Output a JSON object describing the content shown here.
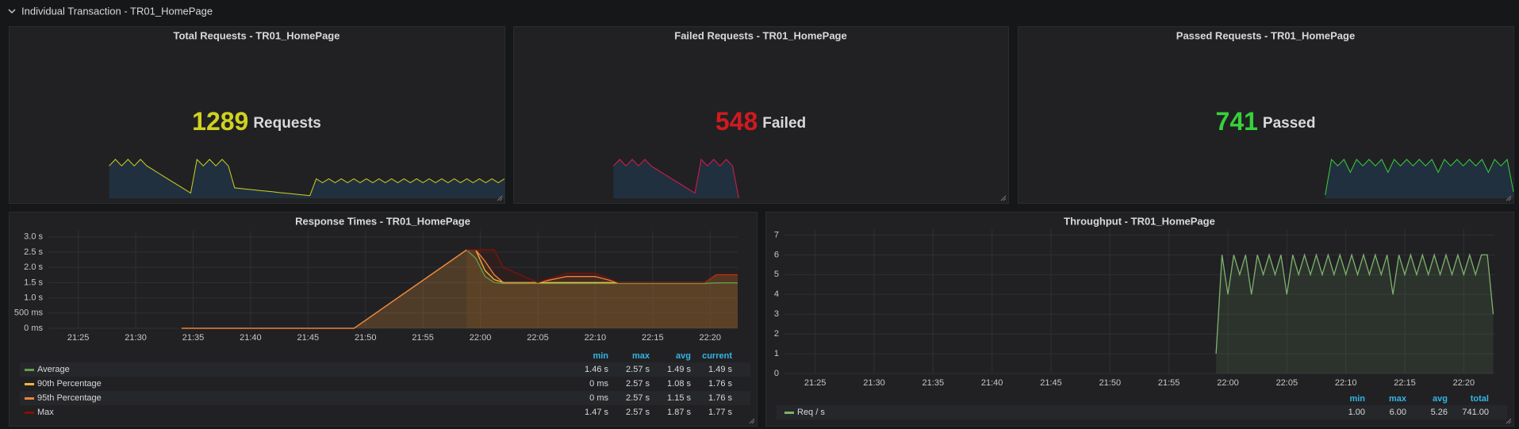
{
  "row_title": "Individual Transaction - TR01_HomePage",
  "chart_data": [
    {
      "type": "stat",
      "title": "Total Requests - TR01_HomePage",
      "value": 1289,
      "unit": "Requests",
      "color": "#d0d21f",
      "sparkline": {
        "color": "#d0d21f",
        "fill_color": "#1f76bd",
        "values": [
          null,
          null,
          null,
          null,
          null,
          null,
          null,
          null,
          null,
          null,
          null,
          null,
          null,
          null,
          null,
          null,
          5,
          6,
          5,
          6,
          5,
          6,
          5,
          4.4,
          3.8,
          3.2,
          2.6,
          2,
          1.4,
          0.8,
          6,
          5,
          6,
          5,
          6,
          5,
          1.6,
          1.5,
          1.4,
          1.3,
          1.2,
          1.1,
          1.0,
          0.9,
          0.8,
          0.7,
          0.6,
          0.5,
          0.4,
          3,
          2.4,
          3,
          2.4,
          3,
          2.4,
          3,
          2.4,
          3,
          2.4,
          3,
          2.4,
          3,
          2.4,
          3,
          2.4,
          3,
          2.4,
          3,
          2.4,
          3,
          2.4,
          3,
          2.4,
          3,
          2.4,
          3,
          2.4,
          3,
          2.4,
          3
        ]
      }
    },
    {
      "type": "stat",
      "title": "Failed Requests - TR01_HomePage",
      "value": 548,
      "unit": "Failed",
      "color": "#d11a1e",
      "sparkline": {
        "color": "#e0194a",
        "fill_color": "#1f76bd",
        "values": [
          null,
          null,
          null,
          null,
          null,
          null,
          null,
          null,
          null,
          null,
          null,
          null,
          null,
          null,
          null,
          null,
          5,
          6,
          5,
          6,
          5,
          6,
          5,
          4.4,
          3.8,
          3.2,
          2.6,
          2,
          1.4,
          0.8,
          6,
          5,
          6,
          5,
          6,
          5,
          0,
          null,
          null,
          null,
          null,
          null,
          null,
          null,
          null,
          null,
          null,
          null,
          null,
          null,
          null,
          null,
          null,
          null,
          null,
          null,
          null,
          null,
          null,
          null,
          null,
          null,
          null,
          null,
          null,
          null,
          null,
          null,
          null,
          null,
          null,
          null,
          null,
          null,
          null,
          null,
          null,
          null,
          null,
          null
        ]
      }
    },
    {
      "type": "stat",
      "title": "Passed Requests - TR01_HomePage",
      "value": 741,
      "unit": "Passed",
      "color": "#37d13a",
      "sparkline": {
        "color": "#3ad13a",
        "fill_color": "#1f76bd",
        "values": [
          null,
          null,
          null,
          null,
          null,
          null,
          null,
          null,
          null,
          null,
          null,
          null,
          null,
          null,
          null,
          null,
          null,
          null,
          null,
          null,
          null,
          null,
          null,
          null,
          null,
          null,
          null,
          null,
          null,
          null,
          null,
          null,
          null,
          null,
          null,
          null,
          null,
          null,
          null,
          null,
          null,
          null,
          null,
          null,
          null,
          null,
          null,
          null,
          null,
          0.5,
          6,
          5,
          6,
          4,
          6,
          5,
          6,
          5,
          6,
          4,
          6,
          5,
          6,
          5,
          6,
          5,
          6,
          4,
          6,
          5,
          6,
          5,
          6,
          5,
          6,
          4,
          6,
          5,
          6,
          1
        ]
      }
    },
    {
      "type": "line",
      "title": "Response Times - TR01_HomePage",
      "x": [
        1294,
        1309,
        1318.8,
        1319.6,
        1320.4,
        1321.2,
        1322,
        1325,
        1327.5,
        1328,
        1330,
        1332,
        1335,
        1338,
        1339.5,
        1340.5,
        1342.4
      ],
      "xlim": [
        1282.4,
        1342.4
      ],
      "xticks": [
        {
          "value": 1285,
          "label": "21:25"
        },
        {
          "value": 1290,
          "label": "21:30"
        },
        {
          "value": 1295,
          "label": "21:35"
        },
        {
          "value": 1300,
          "label": "21:40"
        },
        {
          "value": 1305,
          "label": "21:45"
        },
        {
          "value": 1310,
          "label": "21:50"
        },
        {
          "value": 1315,
          "label": "21:55"
        },
        {
          "value": 1320,
          "label": "22:00"
        },
        {
          "value": 1325,
          "label": "22:05"
        },
        {
          "value": 1330,
          "label": "22:10"
        },
        {
          "value": 1335,
          "label": "22:15"
        },
        {
          "value": 1340,
          "label": "22:20"
        }
      ],
      "ylim": [
        0,
        3.2
      ],
      "yticks": [
        {
          "value": 0,
          "label": "0 ms"
        },
        {
          "value": 0.5,
          "label": "500 ms"
        },
        {
          "value": 1,
          "label": "1.0 s"
        },
        {
          "value": 1.5,
          "label": "1.5 s"
        },
        {
          "value": 2,
          "label": "2.0 s"
        },
        {
          "value": 2.5,
          "label": "2.5 s"
        },
        {
          "value": 3,
          "label": "3.0 s"
        }
      ],
      "grid": true,
      "legend_columns": [
        "min",
        "max",
        "avg",
        "current"
      ],
      "series": [
        {
          "name": "Average",
          "color": "#629e51",
          "values": [
            null,
            null,
            2.57,
            2.3,
            1.7,
            1.5,
            1.47,
            1.47,
            1.47,
            1.47,
            1.47,
            1.47,
            1.47,
            1.47,
            1.47,
            1.49,
            1.49
          ],
          "legend_values": [
            "1.46 s",
            "2.57 s",
            "1.49 s",
            "1.49 s"
          ]
        },
        {
          "name": "90th Percentage",
          "color": "#eab839",
          "values": [
            0,
            0,
            2.57,
            2.57,
            1.9,
            1.6,
            1.5,
            1.5,
            1.5,
            1.5,
            1.5,
            1.5,
            1.5,
            1.5,
            1.5,
            1.76,
            1.76
          ],
          "legend_values": [
            "0 ms",
            "2.57 s",
            "1.08 s",
            "1.76 s"
          ]
        },
        {
          "name": "95th Percentage",
          "color": "#ef843c",
          "values": [
            0,
            0,
            2.57,
            2.57,
            2.2,
            1.76,
            1.5,
            1.5,
            1.7,
            1.7,
            1.7,
            1.5,
            1.5,
            1.5,
            1.5,
            1.76,
            1.76
          ],
          "legend_values": [
            "0 ms",
            "2.57 s",
            "1.15 s",
            "1.76 s"
          ]
        },
        {
          "name": "Max",
          "color": "#890f02",
          "values": [
            null,
            null,
            2.57,
            2.57,
            2.57,
            2.57,
            2.0,
            1.5,
            1.8,
            1.8,
            1.8,
            1.5,
            1.5,
            1.5,
            1.5,
            1.77,
            1.77
          ],
          "legend_values": [
            "1.47 s",
            "2.57 s",
            "1.87 s",
            "1.77 s"
          ]
        }
      ]
    },
    {
      "type": "line",
      "title": "Throughput - TR01_HomePage",
      "x": [
        1319,
        1319.5,
        1320,
        1320.5,
        1321,
        1321.5,
        1322,
        1322.5,
        1323,
        1323.5,
        1324,
        1324.5,
        1325,
        1325.5,
        1326,
        1326.5,
        1327,
        1327.5,
        1328,
        1328.5,
        1329,
        1329.5,
        1330,
        1330.5,
        1331,
        1331.5,
        1332,
        1332.5,
        1333,
        1333.5,
        1334,
        1334.5,
        1335,
        1335.5,
        1336,
        1336.5,
        1337,
        1337.5,
        1338,
        1338.5,
        1339,
        1339.5,
        1340,
        1340.5,
        1341,
        1341.5,
        1342,
        1342.5
      ],
      "xlim": [
        1282.4,
        1342.6
      ],
      "xticks": [
        {
          "value": 1285,
          "label": "21:25"
        },
        {
          "value": 1290,
          "label": "21:30"
        },
        {
          "value": 1295,
          "label": "21:35"
        },
        {
          "value": 1300,
          "label": "21:40"
        },
        {
          "value": 1305,
          "label": "21:45"
        },
        {
          "value": 1310,
          "label": "21:50"
        },
        {
          "value": 1315,
          "label": "21:55"
        },
        {
          "value": 1320,
          "label": "22:00"
        },
        {
          "value": 1325,
          "label": "22:05"
        },
        {
          "value": 1330,
          "label": "22:10"
        },
        {
          "value": 1335,
          "label": "22:15"
        },
        {
          "value": 1340,
          "label": "22:20"
        }
      ],
      "ylim": [
        0,
        7.3
      ],
      "yticks": [
        0,
        1,
        2,
        3,
        4,
        5,
        6,
        7
      ],
      "grid": true,
      "legend_columns": [
        "min",
        "max",
        "avg",
        "total"
      ],
      "series": [
        {
          "name": "Req / s",
          "color": "#7eb26d",
          "values": [
            1,
            6,
            4,
            6,
            5,
            6,
            4,
            6,
            5,
            6,
            5,
            6,
            4,
            6,
            5,
            6,
            5,
            6,
            5,
            6,
            5,
            6,
            5,
            6,
            5,
            6,
            5,
            6,
            5,
            6,
            4,
            6,
            5,
            6,
            5,
            6,
            5,
            6,
            5,
            6,
            5,
            6,
            5,
            6,
            5,
            6,
            6,
            3
          ],
          "legend_values": [
            "1.00",
            "6.00",
            "5.26",
            "741.00"
          ]
        }
      ]
    }
  ]
}
